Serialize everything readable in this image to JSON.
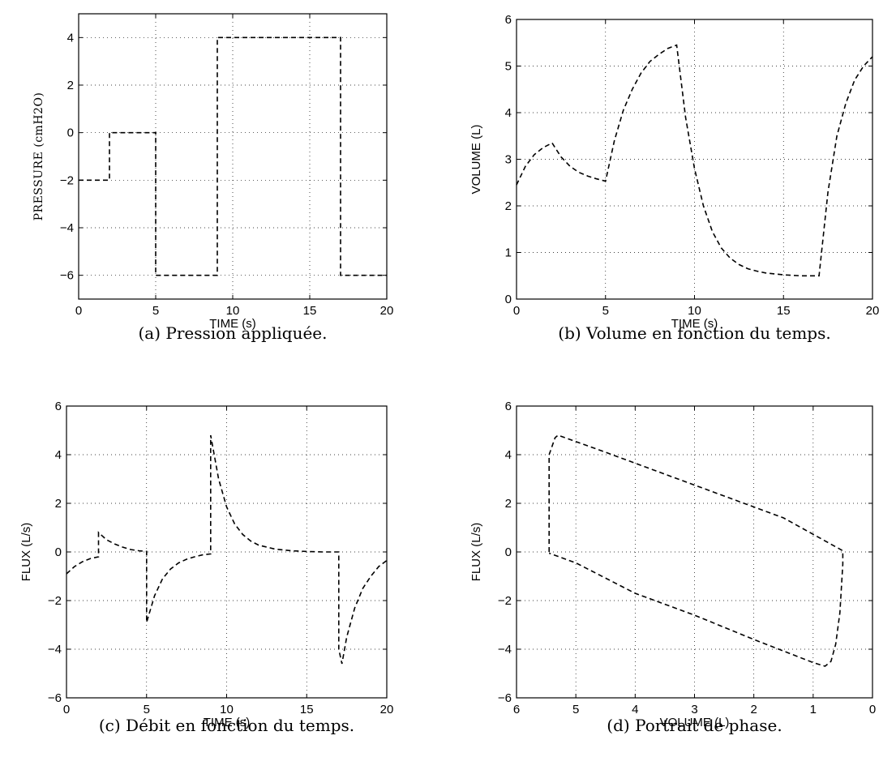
{
  "chart_data": [
    {
      "type": "line",
      "caption": "(a) Pression appliquée.",
      "xlabel": "TIME (s)",
      "ylabel": "PRESSURE (cmH2O)",
      "xlim": [
        0,
        20
      ],
      "ylim": [
        -7,
        5
      ],
      "xticks": [
        0,
        5,
        10,
        15,
        20
      ],
      "yticks": [
        -6,
        -4,
        -2,
        0,
        2,
        4
      ],
      "grid": true,
      "series": [
        {
          "style": "dashed",
          "color": "#000000",
          "x": [
            0,
            2,
            2,
            5,
            5,
            9,
            9,
            17,
            17,
            20
          ],
          "y": [
            -2,
            -2,
            0,
            0,
            -6,
            -6,
            4,
            4,
            -6,
            -6
          ]
        }
      ]
    },
    {
      "type": "line",
      "caption": "(b) Volume en fonction du temps.",
      "xlabel": "TIME (s)",
      "ylabel": "VOLUME (L)",
      "xlim": [
        0,
        20
      ],
      "ylim": [
        0,
        6
      ],
      "xticks": [
        0,
        5,
        10,
        15,
        20
      ],
      "yticks": [
        0,
        1,
        2,
        3,
        4,
        5,
        6
      ],
      "grid": true,
      "series": [
        {
          "style": "dashed",
          "color": "#000000",
          "x": [
            0,
            0.5,
            1,
            1.5,
            2,
            2.5,
            3,
            3.5,
            4,
            4.5,
            5,
            5.5,
            6,
            6.5,
            7,
            7.5,
            8,
            8.5,
            9,
            9.5,
            10,
            10.5,
            11,
            11.5,
            12,
            12.5,
            13,
            13.5,
            14,
            15,
            16,
            17,
            17.5,
            18,
            18.5,
            19,
            19.5,
            20
          ],
          "y": [
            2.45,
            2.85,
            3.1,
            3.25,
            3.35,
            3.05,
            2.85,
            2.72,
            2.64,
            2.58,
            2.53,
            3.4,
            4.05,
            4.5,
            4.85,
            5.1,
            5.25,
            5.38,
            5.45,
            3.9,
            2.8,
            2.0,
            1.45,
            1.1,
            0.88,
            0.74,
            0.65,
            0.6,
            0.56,
            0.52,
            0.5,
            0.5,
            2.3,
            3.5,
            4.2,
            4.7,
            5.0,
            5.2
          ]
        }
      ]
    },
    {
      "type": "line",
      "caption": "(c) Débit en fonction du temps.",
      "xlabel": "TIME (s)",
      "ylabel": "FLUX (L/s)",
      "xlim": [
        0,
        20
      ],
      "ylim": [
        -6,
        6
      ],
      "xticks": [
        0,
        5,
        10,
        15,
        20
      ],
      "yticks": [
        -6,
        -4,
        -2,
        0,
        2,
        4,
        6
      ],
      "grid": true,
      "series": [
        {
          "style": "dashed",
          "color": "#000000",
          "x": [
            0,
            0.5,
            1,
            1.5,
            2,
            2,
            2.5,
            3,
            3.5,
            4,
            4.5,
            5,
            5,
            5.5,
            6,
            6.5,
            7,
            7.5,
            8,
            8.5,
            9,
            9,
            9.5,
            10,
            10.5,
            11,
            11.5,
            12,
            13,
            14,
            15,
            16,
            17,
            17,
            17.2,
            17.5,
            18,
            18.5,
            19,
            19.5,
            20
          ],
          "y": [
            -0.9,
            -0.6,
            -0.4,
            -0.27,
            -0.2,
            0.8,
            0.5,
            0.33,
            0.2,
            0.1,
            0.05,
            0.02,
            -2.9,
            -1.8,
            -1.1,
            -0.7,
            -0.45,
            -0.3,
            -0.2,
            -0.12,
            -0.08,
            4.8,
            3.0,
            1.85,
            1.15,
            0.72,
            0.45,
            0.28,
            0.12,
            0.05,
            0.02,
            0.0,
            0.0,
            -4.0,
            -4.6,
            -3.5,
            -2.3,
            -1.5,
            -1.0,
            -0.6,
            -0.35
          ]
        }
      ]
    },
    {
      "type": "line",
      "caption": "(d) Portrait de phase.",
      "xlabel": "VOLUME (L)",
      "ylabel": "FLUX (L/s)",
      "xlim": [
        6,
        0
      ],
      "ylim": [
        -6,
        6
      ],
      "xticks": [
        6,
        5,
        4,
        3,
        2,
        1,
        0
      ],
      "yticks": [
        -6,
        -4,
        -2,
        0,
        2,
        4,
        6
      ],
      "grid": true,
      "series": [
        {
          "style": "dashed",
          "color": "#000000",
          "x": [
            5.45,
            5.45,
            5.35,
            5.3,
            4.5,
            3.5,
            2.5,
            1.5,
            0.5,
            0.5,
            0.55,
            0.62,
            0.7,
            0.8,
            1.0,
            2.0,
            3.0,
            4.0,
            5.0,
            5.45
          ],
          "y": [
            0.0,
            4.0,
            4.7,
            4.8,
            4.1,
            3.2,
            2.3,
            1.4,
            0.05,
            -0.5,
            -2.5,
            -3.8,
            -4.5,
            -4.7,
            -4.55,
            -3.6,
            -2.6,
            -1.7,
            -0.45,
            -0.05
          ]
        }
      ]
    }
  ]
}
